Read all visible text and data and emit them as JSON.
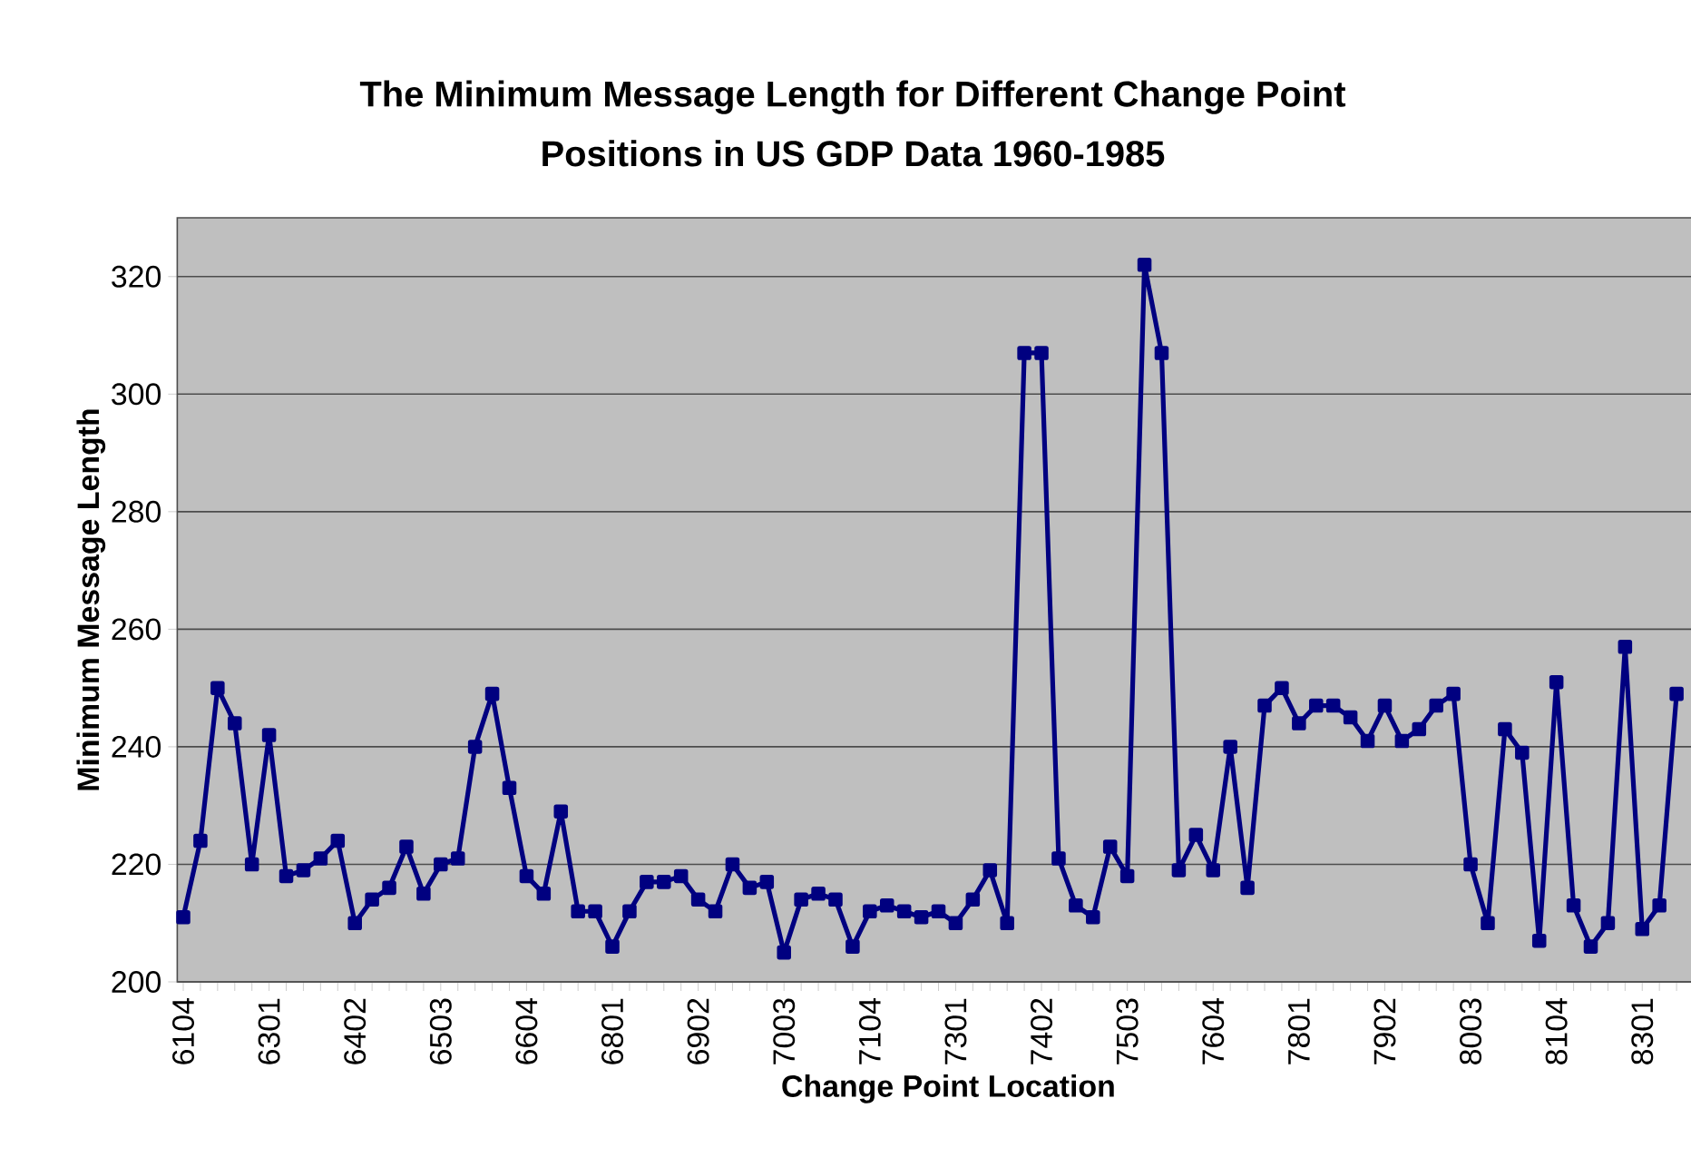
{
  "chart_data": {
    "type": "line",
    "title": "The Minimum Message Length for Different Change Point Positions in US GDP Data 1960-1985",
    "xlabel": "Change Point Location",
    "ylabel": "Minimum Message Length",
    "categories": [
      "6104",
      null,
      null,
      null,
      null,
      "6301",
      null,
      null,
      null,
      null,
      "6402",
      null,
      null,
      null,
      null,
      "6503",
      null,
      null,
      null,
      null,
      "6604",
      null,
      null,
      null,
      null,
      "6801",
      null,
      null,
      null,
      null,
      "6902",
      null,
      null,
      null,
      null,
      "7003",
      null,
      null,
      null,
      null,
      "7104",
      null,
      null,
      null,
      null,
      "7301",
      null,
      null,
      null,
      null,
      "7402",
      null,
      null,
      null,
      null,
      "7503",
      null,
      null,
      null,
      null,
      "7604",
      null,
      null,
      null,
      null,
      "7801",
      null,
      null,
      null,
      null,
      "7902",
      null,
      null,
      null,
      null,
      "8003",
      null,
      null,
      null,
      null,
      "8104",
      null,
      null,
      null,
      null,
      "8301",
      null,
      null
    ],
    "values": [
      211,
      224,
      250,
      244,
      220,
      242,
      218,
      219,
      221,
      224,
      210,
      214,
      216,
      223,
      215,
      220,
      221,
      240,
      249,
      233,
      218,
      215,
      229,
      212,
      212,
      206,
      212,
      217,
      217,
      218,
      214,
      212,
      220,
      216,
      217,
      205,
      214,
      215,
      214,
      206,
      212,
      213,
      212,
      211,
      212,
      210,
      214,
      219,
      210,
      307,
      307,
      221,
      213,
      211,
      223,
      218,
      322,
      307,
      219,
      225,
      219,
      240,
      216,
      247,
      250,
      244,
      247,
      247,
      245,
      241,
      247,
      241,
      243,
      247,
      249,
      220,
      210,
      243,
      239,
      207,
      251,
      213,
      206,
      210,
      257,
      209,
      213,
      249
    ],
    "color": "#000080",
    "ylim": [
      200,
      330
    ],
    "yticks": [
      200,
      220,
      240,
      260,
      280,
      300,
      320
    ],
    "grid": "y",
    "marker": "square",
    "line_style": "solid"
  }
}
